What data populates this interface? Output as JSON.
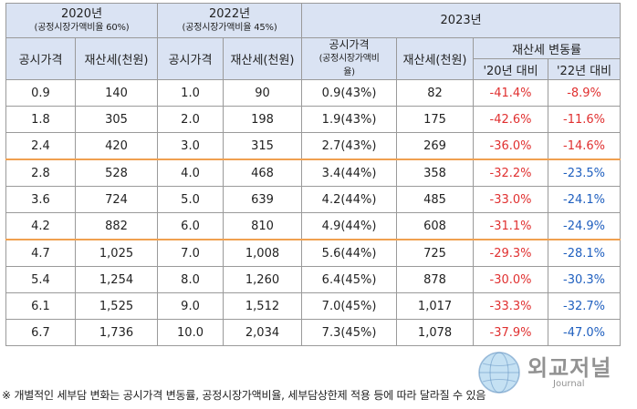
{
  "header": {
    "y2020": {
      "year": "2020년",
      "note": "(공정시장가액비율 60%)"
    },
    "y2022": {
      "year": "2022년",
      "note": "(공정시장가액비율 45%)"
    },
    "y2023": {
      "year": "2023년"
    },
    "col_price": "공시가격",
    "col_tax": "재산세(천원)",
    "col_price_2023_line1": "공시가격",
    "col_price_2023_line2": "(공정시장가액비",
    "col_price_2023_line3": "율)",
    "col_change": "재산세 변동률",
    "col_vs20": "'20년 대비",
    "col_vs22": "'22년 대비"
  },
  "rows": [
    {
      "p20": "0.9",
      "t20": "140",
      "p22": "1.0",
      "t22": "90",
      "p23": "0.9(43%)",
      "t23": "82",
      "v20": "-41.4%",
      "v22": "-8.9%",
      "v22color": "red",
      "grp": false
    },
    {
      "p20": "1.8",
      "t20": "305",
      "p22": "2.0",
      "t22": "198",
      "p23": "1.9(43%)",
      "t23": "175",
      "v20": "-42.6%",
      "v22": "-11.6%",
      "v22color": "red",
      "grp": false
    },
    {
      "p20": "2.4",
      "t20": "420",
      "p22": "3.0",
      "t22": "315",
      "p23": "2.7(43%)",
      "t23": "269",
      "v20": "-36.0%",
      "v22": "-14.6%",
      "v22color": "red",
      "grp": false
    },
    {
      "p20": "2.8",
      "t20": "528",
      "p22": "4.0",
      "t22": "468",
      "p23": "3.4(44%)",
      "t23": "358",
      "v20": "-32.2%",
      "v22": "-23.5%",
      "v22color": "blue",
      "grp": true
    },
    {
      "p20": "3.6",
      "t20": "724",
      "p22": "5.0",
      "t22": "639",
      "p23": "4.2(44%)",
      "t23": "485",
      "v20": "-33.0%",
      "v22": "-24.1%",
      "v22color": "blue",
      "grp": false
    },
    {
      "p20": "4.2",
      "t20": "882",
      "p22": "6.0",
      "t22": "810",
      "p23": "4.9(44%)",
      "t23": "608",
      "v20": "-31.1%",
      "v22": "-24.9%",
      "v22color": "blue",
      "grp": false
    },
    {
      "p20": "4.7",
      "t20": "1,025",
      "p22": "7.0",
      "t22": "1,008",
      "p23": "5.6(44%)",
      "t23": "725",
      "v20": "-29.3%",
      "v22": "-28.1%",
      "v22color": "blue",
      "grp": true
    },
    {
      "p20": "5.4",
      "t20": "1,254",
      "p22": "8.0",
      "t22": "1,260",
      "p23": "6.4(45%)",
      "t23": "878",
      "v20": "-30.0%",
      "v22": "-30.3%",
      "v22color": "blue",
      "grp": false
    },
    {
      "p20": "6.1",
      "t20": "1,525",
      "p22": "9.0",
      "t22": "1,512",
      "p23": "7.0(45%)",
      "t23": "1,017",
      "v20": "-33.3%",
      "v22": "-32.7%",
      "v22color": "blue",
      "grp": false
    },
    {
      "p20": "6.7",
      "t20": "1,736",
      "p22": "10.0",
      "t22": "2,034",
      "p23": "7.3(45%)",
      "t23": "1,078",
      "v20": "-37.9%",
      "v22": "-47.0%",
      "v22color": "blue",
      "grp": false
    }
  ],
  "footnote": "※ 개별적인 세부담 변화는 공시가격 변동률, 공정시장가액비율, 세부담상한제 적용 등에 따라 달라질 수 있음",
  "watermark": {
    "text": "외교저널",
    "sub": "Journal"
  },
  "colors": {
    "header_bg": "#dae3f3",
    "negative_red": "#e03030",
    "negative_blue": "#1f5fbf",
    "group_divider": "#f0a050"
  }
}
